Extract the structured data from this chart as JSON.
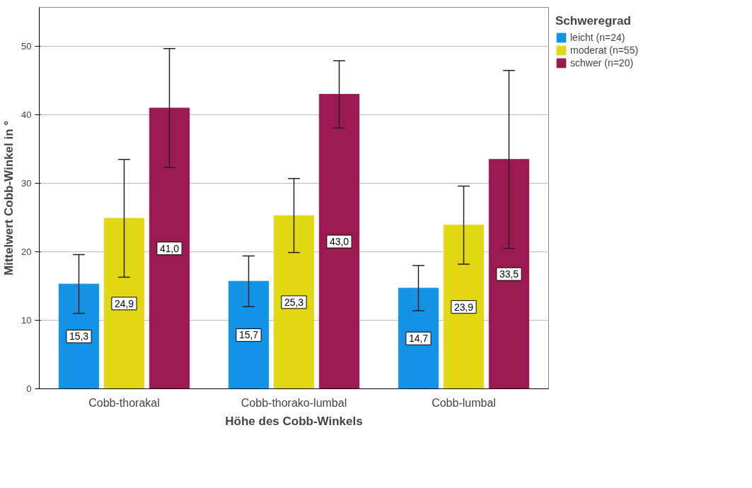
{
  "chart_data": {
    "type": "bar",
    "xlabel": "Höhe des Cobb-Winkels",
    "ylabel": "Mittelwert Cobb-Winkel in °",
    "legend_title": "Schweregrad",
    "categories": [
      "Cobb-thorakal",
      "Cobb-thorako-lumbal",
      "Cobb-lumbal"
    ],
    "series": [
      {
        "name": "leicht (n=24)",
        "color": "#1492e6",
        "values": [
          15.3,
          15.7,
          14.7
        ],
        "errors": [
          4.3,
          3.7,
          3.3
        ],
        "value_labels": [
          "15,3",
          "15,7",
          "14,7"
        ]
      },
      {
        "name": "moderat (n=55)",
        "color": "#e1d712",
        "values": [
          24.9,
          25.3,
          23.9
        ],
        "errors": [
          8.6,
          5.4,
          5.7
        ],
        "value_labels": [
          "24,9",
          "25,3",
          "23,9"
        ]
      },
      {
        "name": "schwer (n=20)",
        "color": "#9c1a52",
        "values": [
          41.0,
          43.0,
          33.5
        ],
        "errors": [
          8.7,
          4.9,
          13.0
        ],
        "value_labels": [
          "41,0",
          "43,0",
          "33,5"
        ]
      }
    ],
    "ylim": [
      0,
      55.7
    ],
    "yticks": [
      0,
      10,
      20,
      30,
      40,
      50
    ],
    "grid": "y",
    "legend": "top right"
  }
}
